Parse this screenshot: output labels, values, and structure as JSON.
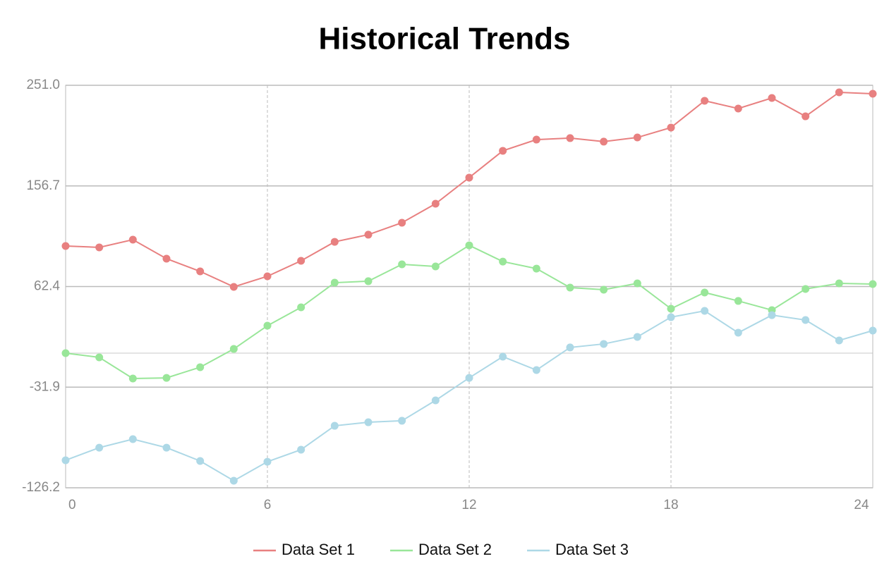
{
  "chart_data": {
    "type": "line",
    "title": "Historical Trends",
    "x": [
      0,
      1,
      2,
      3,
      4,
      5,
      6,
      7,
      8,
      9,
      10,
      11,
      12,
      13,
      14,
      15,
      16,
      17,
      18,
      19,
      20,
      21,
      22,
      23,
      24
    ],
    "xlim": [
      0,
      24
    ],
    "xticks": [
      0,
      6,
      12,
      18,
      24
    ],
    "ylim": [
      -126.2,
      251.0
    ],
    "yticks": [
      -126.2,
      -31.9,
      62.4,
      156.7,
      {
        "value": 251.0,
        "label": "251.0"
      }
    ],
    "grid": true,
    "legend": "bottom",
    "series": [
      {
        "name": "Data Set 1",
        "color": "#e88080",
        "values": [
          100.4,
          99.1,
          106.3,
          88.5,
          76.6,
          62.1,
          72.0,
          86.5,
          104.3,
          111.0,
          122.2,
          140.0,
          164.5,
          189.6,
          200.1,
          201.5,
          198.2,
          202.1,
          211.4,
          236.5,
          229.2,
          239.1,
          221.9,
          244.4,
          243.1
        ]
      },
      {
        "name": "Data Set 2",
        "color": "#99e699",
        "values": [
          0.0,
          -4.0,
          -23.8,
          -23.2,
          -13.2,
          3.9,
          25.7,
          42.9,
          66.0,
          67.4,
          83.2,
          81.2,
          101.0,
          85.8,
          79.2,
          61.4,
          59.4,
          65.4,
          41.6,
          56.8,
          48.9,
          40.3,
          60.1,
          65.4,
          64.7
        ]
      },
      {
        "name": "Data Set 3",
        "color": "#add8e6",
        "values": [
          -100.4,
          -88.6,
          -80.6,
          -88.6,
          -101.1,
          -119.6,
          -101.8,
          -90.5,
          -68.1,
          -64.8,
          -63.4,
          -44.3,
          -23.2,
          -3.3,
          -15.9,
          5.3,
          8.6,
          15.2,
          33.7,
          39.6,
          19.1,
          35.6,
          31.0,
          11.9,
          21.1
        ]
      }
    ]
  }
}
